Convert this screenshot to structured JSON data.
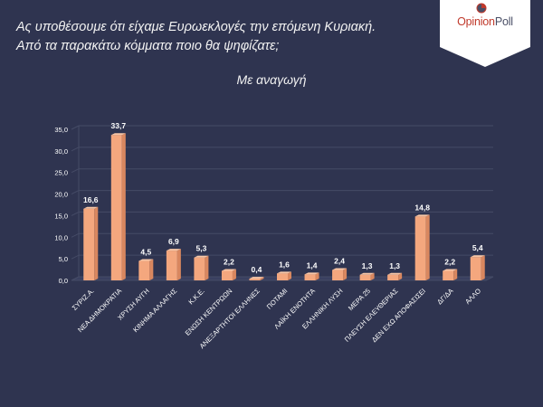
{
  "header": {
    "question_line1": "Ας υποθέσουμε ότι είχαμε Ευρωεκλογές την επόμενη Κυριακή.",
    "question_line2": "Από τα παρακάτω κόμματα ποιο θα ψηφίζατε;",
    "subtitle": "Με αναγωγή"
  },
  "logo": {
    "part1": "Opinion",
    "part2": "Poll"
  },
  "colors": {
    "background": "#2f3450",
    "bar_front": "#f4a77e",
    "bar_side": "#d9875f",
    "bar_top": "#f8c6a6",
    "grid": "#454b66",
    "axis_text": "#ffffff"
  },
  "chart_data": {
    "type": "bar",
    "title": "Με αναγωγή",
    "categories": [
      "ΣΥΡΙΖ.Α.",
      "ΝΕΑ ΔΗΜΟΚΡΑΤΙΑ",
      "ΧΡΥΣΗ ΑΥΓΗ",
      "ΚΙΝΗΜΑ ΑΛΛΑΓΗΣ",
      "Κ.Κ.Ε.",
      "ΕΝΩΣΗ ΚΕΝΤΡΩΩΝ",
      "ΑΝΕΞΑΡΤΗΤΟΙ ΕΛΛΗΝΕΣ",
      "ΠΟΤΑΜΙ",
      "ΛΑΪΚΗ ΕΝΟΤΗΤΑ",
      "ΕΛΛΗΝΙΚΗ ΛΥΣΗ",
      "ΜΕΡΑ 25",
      "ΠΛΕΥΣΗ ΕΛΕΥΘΕΡΙΑΣ",
      "ΔΕΝ ΕΧΩ ΑΠΟΦΑΣΙΣΕΙ",
      "ΔΓ/ΔΑ",
      "ΑΛΛΟ"
    ],
    "values": [
      16.6,
      33.7,
      4.5,
      6.9,
      5.3,
      2.2,
      0.4,
      1.6,
      1.4,
      2.4,
      1.3,
      1.3,
      14.8,
      2.2,
      5.4
    ],
    "value_labels": [
      "16,6",
      "33,7",
      "4,5",
      "6,9",
      "5,3",
      "2,2",
      "0,4",
      "1,6",
      "1,4",
      "2,4",
      "1,3",
      "1,3",
      "14,8",
      "2,2",
      "5,4"
    ],
    "ylim": [
      0,
      35
    ],
    "yticks": [
      "0,0",
      "5,0",
      "10,0",
      "15,0",
      "20,0",
      "25,0",
      "30,0",
      "35,0"
    ],
    "xlabel": "",
    "ylabel": "",
    "grid": true,
    "legend": "none"
  }
}
